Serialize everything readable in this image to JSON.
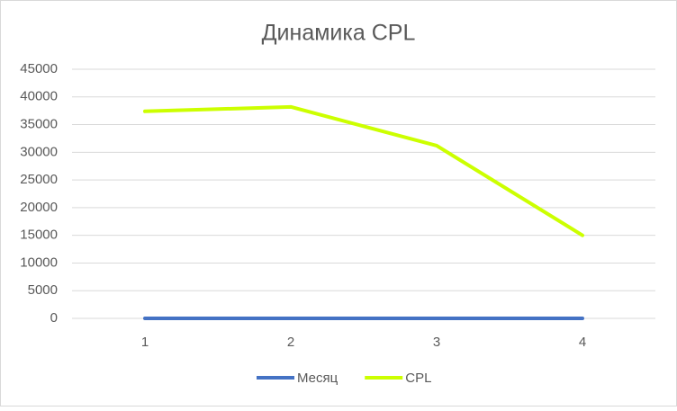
{
  "chart_data": {
    "type": "line",
    "title": "Динамика CPL",
    "categories": [
      "1",
      "2",
      "3",
      "4"
    ],
    "series": [
      {
        "name": "Месяц",
        "color": "#4472c4",
        "values": [
          1,
          2,
          3,
          4
        ]
      },
      {
        "name": "CPL",
        "color": "#ccff00",
        "values": [
          37400,
          38200,
          31200,
          15000
        ]
      }
    ],
    "ylim": [
      0,
      45000
    ],
    "yticks": [
      0,
      5000,
      10000,
      15000,
      20000,
      25000,
      30000,
      35000,
      40000,
      45000
    ],
    "grid": true,
    "legend": "bottom"
  }
}
